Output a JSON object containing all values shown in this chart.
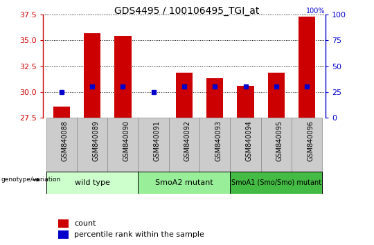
{
  "title": "GDS4495 / 100106495_TGI_at",
  "samples": [
    "GSM840088",
    "GSM840089",
    "GSM840090",
    "GSM840091",
    "GSM840092",
    "GSM840093",
    "GSM840094",
    "GSM840095",
    "GSM840096"
  ],
  "count_values": [
    28.6,
    35.7,
    35.4,
    27.5,
    31.9,
    31.3,
    30.6,
    31.9,
    37.3
  ],
  "percentile_values": [
    25,
    30,
    30,
    25,
    30,
    30,
    30,
    30,
    30
  ],
  "ylim_left": [
    27.5,
    37.5
  ],
  "ylim_right": [
    0,
    100
  ],
  "yticks_left": [
    27.5,
    30.0,
    32.5,
    35.0,
    37.5
  ],
  "yticks_right": [
    0,
    25,
    50,
    75,
    100
  ],
  "groups": [
    {
      "label": "wild type",
      "indices": [
        0,
        1,
        2
      ],
      "color": "#ccffcc"
    },
    {
      "label": "SmoA2 mutant",
      "indices": [
        3,
        4,
        5
      ],
      "color": "#99ee99"
    },
    {
      "label": "SmoA1 (Smo/Smo) mutant",
      "indices": [
        6,
        7,
        8
      ],
      "color": "#44bb44"
    }
  ],
  "bar_color": "#cc0000",
  "dot_color": "#0000cc",
  "bar_bottom": 27.5,
  "legend_items": [
    "count",
    "percentile rank within the sample"
  ],
  "legend_colors": [
    "#cc0000",
    "#0000cc"
  ]
}
